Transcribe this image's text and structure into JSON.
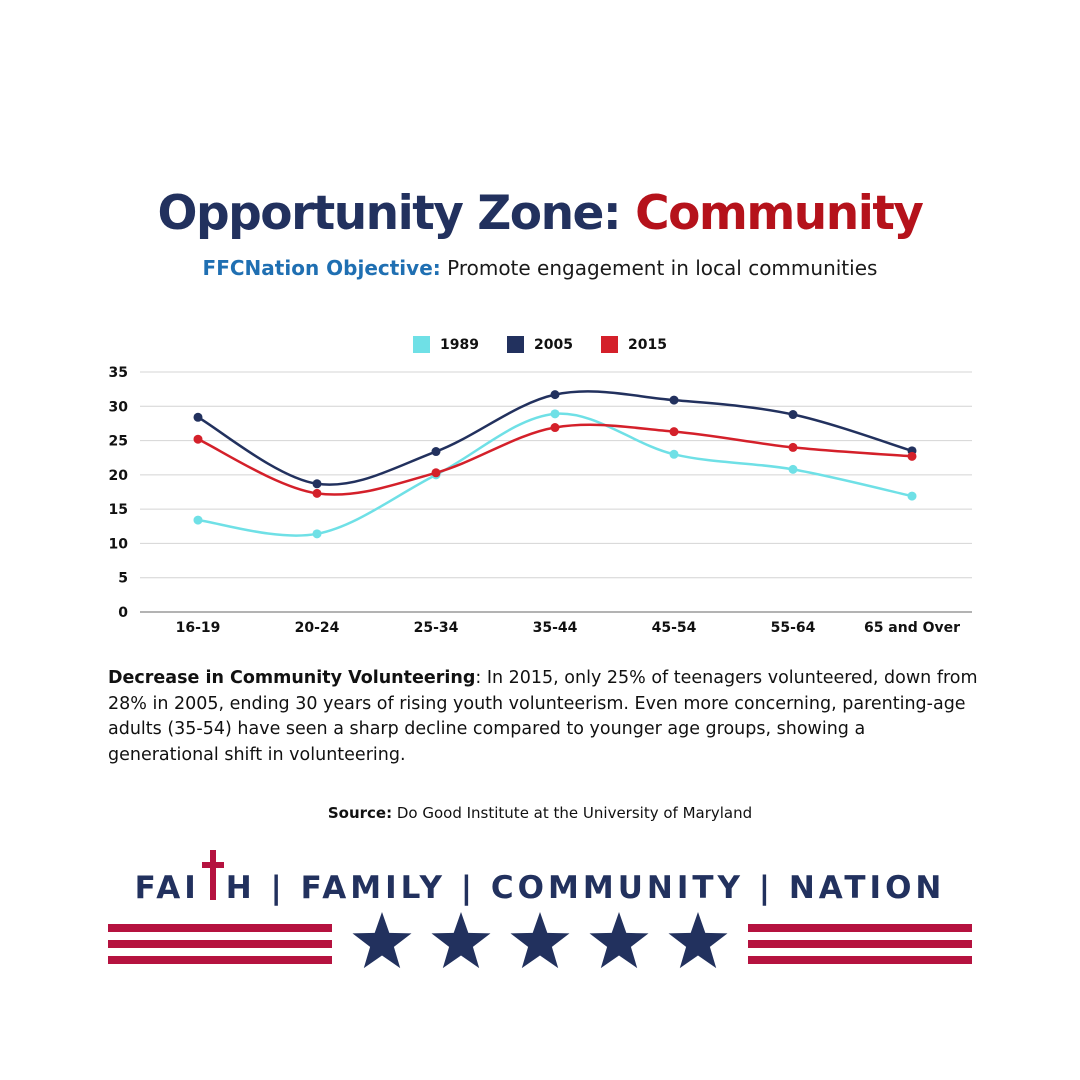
{
  "header": {
    "title_part1": "Opportunity Zone: ",
    "title_part2": "Community",
    "subtitle_label": "FFCNation Objective:",
    "subtitle_text": " Promote engagement in local communities"
  },
  "chart_data": {
    "type": "line",
    "categories": [
      "16-19",
      "20-24",
      "25-34",
      "35-44",
      "45-54",
      "55-64",
      "65 and Over"
    ],
    "series": [
      {
        "name": "1989",
        "color": "#6fe0e6",
        "values": [
          13.4,
          11.4,
          20.0,
          28.9,
          23.0,
          20.8,
          16.9
        ]
      },
      {
        "name": "2005",
        "color": "#22315e",
        "values": [
          28.4,
          18.7,
          23.4,
          31.7,
          30.9,
          28.8,
          23.5
        ]
      },
      {
        "name": "2015",
        "color": "#d4202a",
        "values": [
          25.2,
          17.3,
          20.3,
          26.9,
          26.3,
          24.0,
          22.7
        ]
      }
    ],
    "yticks": [
      0,
      5,
      10,
      15,
      20,
      25,
      30,
      35
    ],
    "ylim": [
      0,
      35
    ],
    "grid": true,
    "legend_position": "top-center"
  },
  "description": {
    "bold": "Decrease in Community Volunteering",
    "text": ": In 2015, only 25% of teenagers volunteered, down from 28% in 2005, ending 30 years of rising youth volunteerism. Even more concerning, parenting-age adults (35-54) have seen a sharp decline compared to younger age groups, showing a generational shift in volunteering."
  },
  "source": {
    "label": "Source:",
    "text": " Do Good Institute at the University of Maryland"
  },
  "footer": {
    "tagline_fai": "FAI",
    "tagline_rest": "H | FAMILY | COMMUNITY | NATION",
    "cross_icon": "cross-icon",
    "star_icon": "star-icon",
    "star_count": 5,
    "navy": "#22315e",
    "crimson": "#b5123f"
  }
}
